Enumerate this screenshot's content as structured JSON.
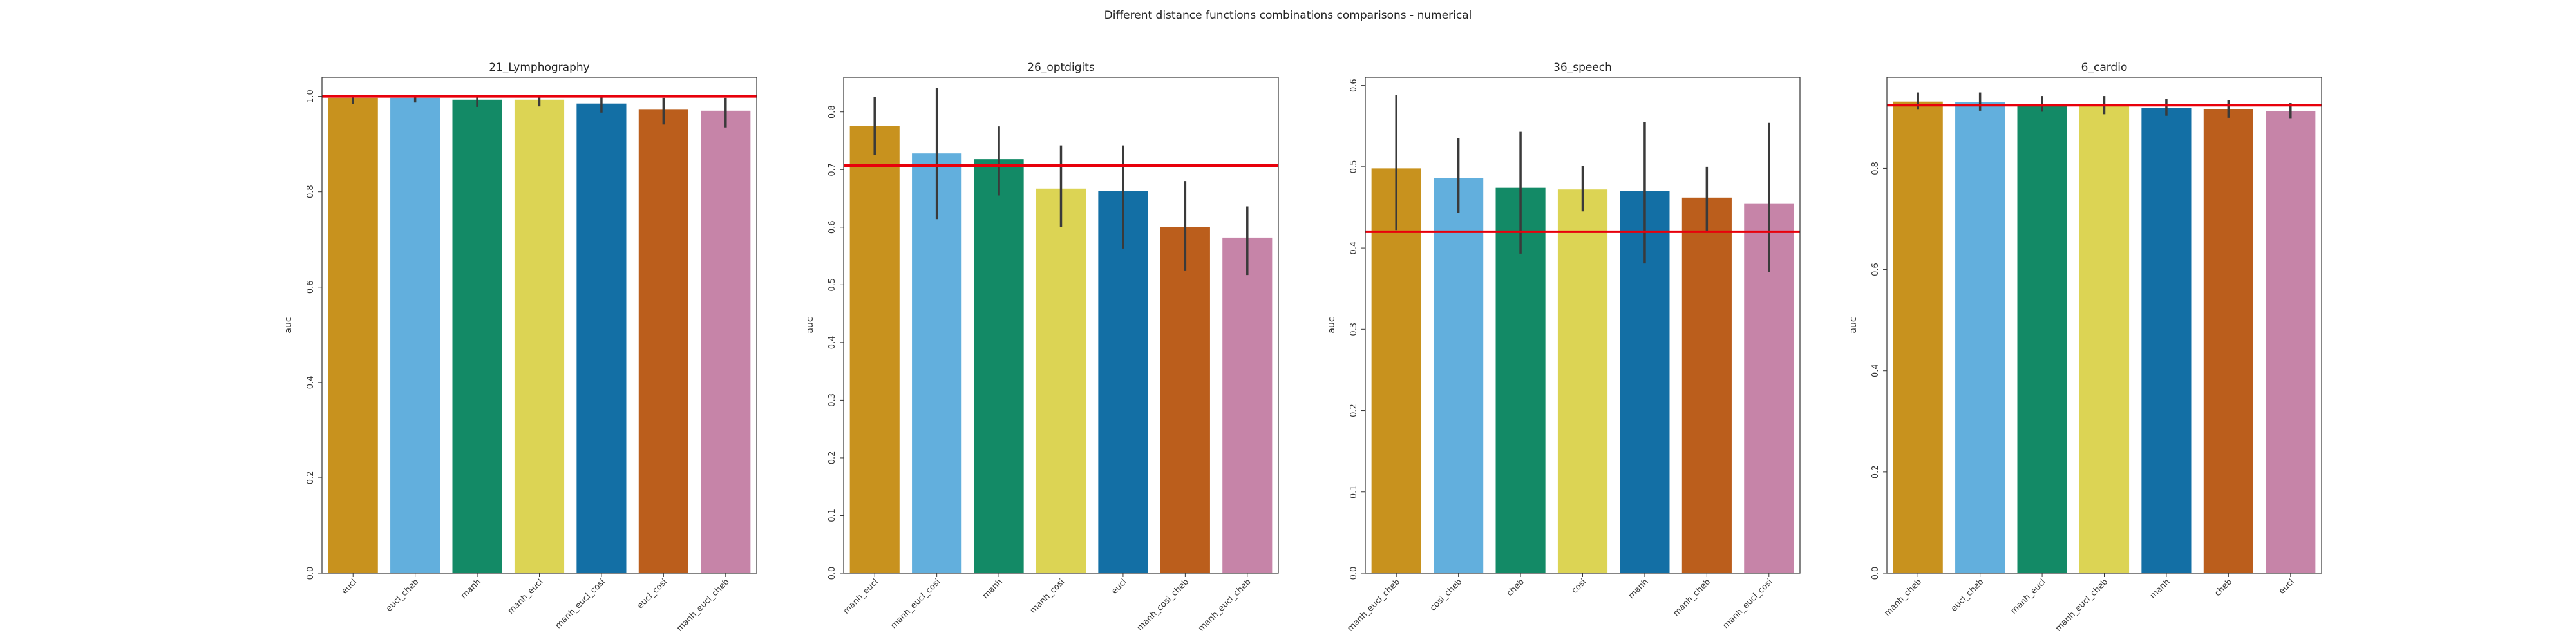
{
  "figure_title": "Different distance functions combinations comparisons - numerical",
  "colors": [
    "#c8921e",
    "#62afdd",
    "#138a66",
    "#dcd454",
    "#136fa5",
    "#bb5e1c",
    "#c684a8"
  ],
  "reference_line_color": "#e8000b",
  "chart_data": [
    {
      "type": "bar",
      "title": "21_Lymphography",
      "ylabel": "auc",
      "ylim": [
        0,
        1.04
      ],
      "yticks": [
        0.0,
        0.2,
        0.4,
        0.6,
        0.8,
        1.0
      ],
      "categories": [
        "eucl",
        "eucl_cheb",
        "manh",
        "manh_eucl",
        "manh_eucl_cosi",
        "eucl_cosi",
        "manh_eucl_cheb"
      ],
      "values": [
        0.997,
        0.997,
        0.993,
        0.993,
        0.985,
        0.972,
        0.97
      ],
      "error_low": [
        0.984,
        0.987,
        0.978,
        0.979,
        0.966,
        0.941,
        0.935
      ],
      "error_high": [
        1.0,
        1.0,
        1.0,
        1.0,
        1.0,
        0.997,
        0.997
      ],
      "reference_line": 1.0
    },
    {
      "type": "bar",
      "title": "26_optdigits",
      "ylabel": "auc",
      "ylim": [
        0,
        0.86
      ],
      "yticks": [
        0.0,
        0.1,
        0.2,
        0.3,
        0.4,
        0.5,
        0.6,
        0.7,
        0.8
      ],
      "categories": [
        "manh_eucl",
        "manh_eucl_cosi",
        "manh",
        "manh_cosi",
        "eucl",
        "manh_cosi_cheb",
        "manh_eucl_cheb"
      ],
      "values": [
        0.776,
        0.728,
        0.718,
        0.667,
        0.663,
        0.6,
        0.582
      ],
      "error_low": [
        0.726,
        0.614,
        0.655,
        0.6,
        0.563,
        0.524,
        0.517
      ],
      "error_high": [
        0.826,
        0.842,
        0.775,
        0.742,
        0.742,
        0.68,
        0.636
      ],
      "reference_line": 0.707
    },
    {
      "type": "bar",
      "title": "36_speech",
      "ylabel": "auc",
      "ylim": [
        0,
        0.61
      ],
      "yticks": [
        0.0,
        0.1,
        0.2,
        0.3,
        0.4,
        0.5,
        0.6
      ],
      "categories": [
        "manh_eucl_cheb",
        "cosi_cheb",
        "cheb",
        "cosi",
        "manh",
        "manh_cheb",
        "manh_eucl_cosi"
      ],
      "values": [
        0.498,
        0.486,
        0.474,
        0.472,
        0.47,
        0.462,
        0.455
      ],
      "error_low": [
        0.422,
        0.443,
        0.393,
        0.445,
        0.381,
        0.421,
        0.37
      ],
      "error_high": [
        0.588,
        0.535,
        0.543,
        0.501,
        0.555,
        0.5,
        0.554
      ],
      "reference_line": 0.42
    },
    {
      "type": "bar",
      "title": "6_cardio",
      "ylabel": "auc",
      "ylim": [
        0,
        0.98
      ],
      "yticks": [
        0.0,
        0.2,
        0.4,
        0.6,
        0.8
      ],
      "categories": [
        "manh_cheb",
        "eucl_cheb",
        "manh_eucl",
        "manh_eucl_cheb",
        "manh",
        "cheb",
        "eucl"
      ],
      "values": [
        0.932,
        0.931,
        0.927,
        0.925,
        0.92,
        0.917,
        0.913
      ],
      "error_low": [
        0.916,
        0.914,
        0.912,
        0.907,
        0.904,
        0.9,
        0.898
      ],
      "error_high": [
        0.95,
        0.95,
        0.943,
        0.943,
        0.937,
        0.935,
        0.929
      ],
      "reference_line": 0.925
    }
  ]
}
